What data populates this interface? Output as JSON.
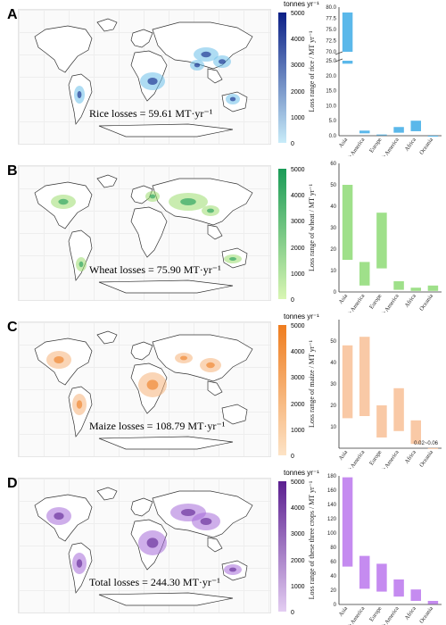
{
  "panels": [
    {
      "letter": "A",
      "caption": "Rice losses = 59.61 MT·yr⁻¹",
      "colorbar_title": "tonnes yr⁻¹",
      "colorbar_ticks": [
        "5000",
        "4000",
        "3000",
        "2000",
        "1000",
        "0"
      ],
      "colors": {
        "dark": "#0b1f86",
        "light": "#c8ecf9",
        "bar": "#5bb8ea",
        "map": "#6cc0ea"
      }
    },
    {
      "letter": "B",
      "caption": "Wheat losses = 75.90 MT·yr⁻¹",
      "colorbar_title": "",
      "colorbar_ticks": [
        "5000",
        "4000",
        "3000",
        "2000",
        "1000",
        "0"
      ],
      "colors": {
        "dark": "#1a9b57",
        "light": "#d9f6b3",
        "bar": "#9fe08a",
        "map": "#9cdc70"
      }
    },
    {
      "letter": "C",
      "caption": "Maize losses = 108.79 MT·yr⁻¹",
      "colorbar_title": "tonnes yr⁻¹",
      "colorbar_ticks": [
        "5000",
        "4000",
        "3000",
        "2000",
        "1000",
        "0"
      ],
      "colors": {
        "dark": "#ef7d1f",
        "light": "#fde3c6",
        "bar": "#f9c9a6",
        "map": "#f5b27a"
      }
    },
    {
      "letter": "D",
      "caption": "Total losses = 244.30 MT·yr⁻¹",
      "colorbar_title": "tonnes yr⁻¹",
      "colorbar_ticks": [
        "5000",
        "4000",
        "3000",
        "2000",
        "1000",
        "0"
      ],
      "colors": {
        "dark": "#5b1f90",
        "light": "#e3cdf2",
        "bar": "#c58bf0",
        "map": "#a66bd8"
      }
    }
  ],
  "chart_data": [
    {
      "type": "bar",
      "title": "",
      "ylabel": "Loss range of rice / MT yr⁻¹",
      "categories": [
        "Asia",
        "North America",
        "Europe",
        "South America",
        "Africa",
        "Oceania"
      ],
      "ranges": [
        [
          24.0,
          78.8
        ],
        [
          0.8,
          1.7
        ],
        [
          0.2,
          0.4
        ],
        [
          1.0,
          2.9
        ],
        [
          1.5,
          5.0
        ],
        [
          0.0,
          0.0
        ]
      ],
      "broken_axis": true,
      "yticks_upper": [
        "80.0",
        "77.5",
        "75.0",
        "72.5",
        "70.0"
      ],
      "yticks_lower": [
        "25.0",
        "20.0",
        "15.0",
        "10.0",
        "5.0",
        "0.0"
      ]
    },
    {
      "type": "bar",
      "title": "",
      "ylabel": "Loss range of wheat / MT yr⁻¹",
      "categories": [
        "Asia",
        "North America",
        "Europe",
        "South America",
        "Africa",
        "Oceania"
      ],
      "ranges": [
        [
          15,
          50
        ],
        [
          3,
          14
        ],
        [
          11,
          37
        ],
        [
          1,
          5
        ],
        [
          0.5,
          2
        ],
        [
          0.5,
          3
        ]
      ],
      "ylim": [
        0,
        60
      ],
      "yticks": [
        "60",
        "50",
        "40",
        "30",
        "20",
        "10",
        "0"
      ]
    },
    {
      "type": "bar",
      "title": "",
      "ylabel": "Loss range of maize / MT yr⁻¹",
      "categories": [
        "Asia",
        "North America",
        "Europe",
        "South America",
        "Africa",
        "Oceania"
      ],
      "ranges": [
        [
          14,
          48
        ],
        [
          15,
          52
        ],
        [
          5,
          20
        ],
        [
          8,
          28
        ],
        [
          2,
          13
        ],
        [
          0.02,
          0.06
        ]
      ],
      "ylim": [
        0,
        60
      ],
      "yticks": [
        "50",
        "40",
        "30",
        "20",
        "10"
      ],
      "annotation": "0.02~0.06"
    },
    {
      "type": "bar",
      "title": "",
      "ylabel": "Loss range of these three crops / MT yr⁻¹",
      "categories": [
        "Asia",
        "North America",
        "Europe",
        "South America",
        "Africa",
        "Oceania"
      ],
      "ranges": [
        [
          53,
          178
        ],
        [
          22,
          68
        ],
        [
          18,
          57
        ],
        [
          11,
          35
        ],
        [
          5,
          21
        ],
        [
          0.5,
          5
        ]
      ],
      "ylim": [
        0,
        180
      ],
      "yticks": [
        "180",
        "160",
        "140",
        "120",
        "100",
        "80",
        "60",
        "40",
        "20",
        "0"
      ]
    }
  ]
}
